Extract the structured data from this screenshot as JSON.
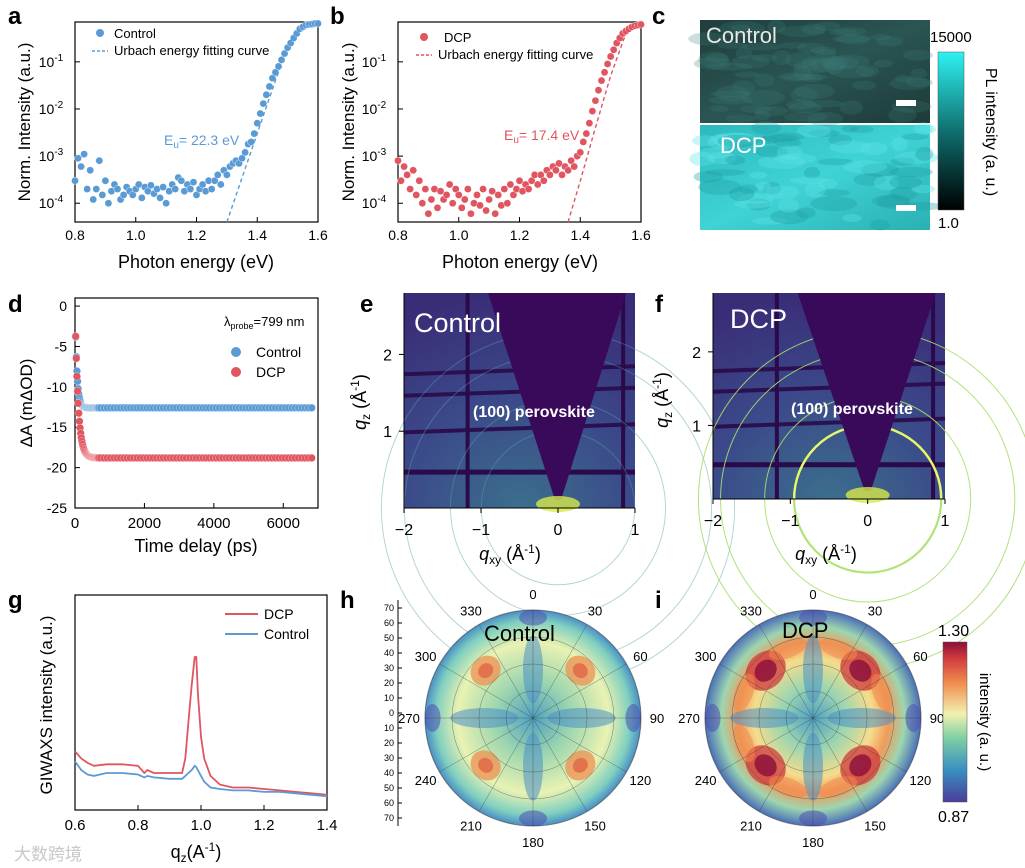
{
  "colors": {
    "control": "#5b9bd5",
    "dcp": "#e05560",
    "axis": "#000000"
  },
  "panel_labels": {
    "a": "a",
    "b": "b",
    "c": "c",
    "d": "d",
    "e": "e",
    "f": "f",
    "g": "g",
    "h": "h",
    "i": "i"
  },
  "watermark": "大数跨境",
  "chart_data": [
    {
      "id": "a",
      "type": "scatter",
      "xlabel": "Photon energy (eV)",
      "ylabel": "Norm. Intensity (a.u.)",
      "yscale": "log",
      "xlim": [
        0.8,
        1.6
      ],
      "ylim": [
        4e-05,
        0.7
      ],
      "xticks": [
        "0.8",
        "1.0",
        "1.2",
        "1.4",
        "1.6"
      ],
      "yticks": [
        {
          "v": 0.1,
          "b": "10",
          "e": "-1"
        },
        {
          "v": 0.01,
          "b": "10",
          "e": "-2"
        },
        {
          "v": 0.001,
          "b": "10",
          "e": "-3"
        },
        {
          "v": 0.0001,
          "b": "10",
          "e": "-4"
        }
      ],
      "legend": [
        "Control",
        "Urbach energy fitting curve"
      ],
      "annotation": {
        "main": "E",
        "sub": "u",
        "rest": "= 22.3 eV"
      },
      "series": [
        {
          "name": "Control",
          "x": [
            0.8,
            0.81,
            0.82,
            0.83,
            0.84,
            0.85,
            0.86,
            0.87,
            0.88,
            0.89,
            0.9,
            0.91,
            0.92,
            0.93,
            0.94,
            0.95,
            0.96,
            0.97,
            0.98,
            0.99,
            1.0,
            1.01,
            1.02,
            1.03,
            1.04,
            1.05,
            1.06,
            1.07,
            1.08,
            1.09,
            1.1,
            1.11,
            1.12,
            1.13,
            1.14,
            1.15,
            1.16,
            1.17,
            1.18,
            1.19,
            1.2,
            1.21,
            1.22,
            1.23,
            1.24,
            1.25,
            1.26,
            1.27,
            1.28,
            1.29,
            1.3,
            1.31,
            1.32,
            1.33,
            1.34,
            1.35,
            1.36,
            1.37,
            1.38,
            1.39,
            1.4,
            1.41,
            1.42,
            1.43,
            1.44,
            1.45,
            1.46,
            1.47,
            1.48,
            1.49,
            1.5,
            1.51,
            1.52,
            1.53,
            1.54,
            1.55,
            1.56,
            1.57,
            1.58,
            1.59,
            1.6
          ],
          "y": [
            0.0003,
            0.0009,
            0.0006,
            0.0011,
            0.0002,
            0.0005,
            0.00012,
            0.0002,
            0.0008,
            0.00015,
            0.0003,
            0.0001,
            0.00018,
            0.00025,
            0.0002,
            0.00012,
            0.00015,
            0.00022,
            0.00018,
            0.00015,
            0.0002,
            0.00025,
            0.00013,
            0.00022,
            0.00018,
            0.00024,
            0.00016,
            0.0002,
            0.00013,
            0.00022,
            0.0001,
            0.00018,
            0.00025,
            0.0002,
            0.00035,
            0.0003,
            0.00018,
            0.00025,
            0.0002,
            0.00028,
            0.00015,
            0.0002,
            0.00025,
            0.00018,
            0.0003,
            0.0002,
            0.0003,
            0.0004,
            0.00025,
            0.0005,
            0.0004,
            0.0006,
            0.0007,
            0.0008,
            0.0007,
            0.0009,
            0.0012,
            0.0018,
            0.002,
            0.003,
            0.005,
            0.008,
            0.013,
            0.02,
            0.03,
            0.045,
            0.06,
            0.08,
            0.11,
            0.15,
            0.2,
            0.25,
            0.32,
            0.4,
            0.5,
            0.55,
            0.6,
            0.62,
            0.63,
            0.65,
            0.65
          ]
        },
        {
          "name": "Urbach energy fitting curve",
          "x": [
            1.3,
            1.35,
            1.4,
            1.45,
            1.5,
            1.55,
            1.58
          ],
          "y": [
            4e-05,
            0.00035,
            0.003,
            0.026,
            0.22,
            0.6,
            0.68
          ],
          "style": "dashed"
        }
      ]
    },
    {
      "id": "b",
      "type": "scatter",
      "xlabel": "Photon energy (eV)",
      "ylabel": "Norm. Intensity (a.u.)",
      "yscale": "log",
      "xlim": [
        0.8,
        1.6
      ],
      "ylim": [
        4e-05,
        0.7
      ],
      "xticks": [
        "0.8",
        "1.0",
        "1.2",
        "1.4",
        "1.6"
      ],
      "yticks": [
        {
          "v": 0.1,
          "b": "10",
          "e": "-1"
        },
        {
          "v": 0.01,
          "b": "10",
          "e": "-2"
        },
        {
          "v": 0.001,
          "b": "10",
          "e": "-3"
        },
        {
          "v": 0.0001,
          "b": "10",
          "e": "-4"
        }
      ],
      "legend": [
        "DCP",
        "Urbach energy fitting curve"
      ],
      "annotation": {
        "main": "E",
        "sub": "u",
        "rest": "= 17.4 eV"
      },
      "series": [
        {
          "name": "DCP",
          "x": [
            0.8,
            0.81,
            0.82,
            0.83,
            0.84,
            0.85,
            0.86,
            0.87,
            0.88,
            0.89,
            0.9,
            0.91,
            0.92,
            0.93,
            0.94,
            0.95,
            0.96,
            0.97,
            0.98,
            0.99,
            1.0,
            1.01,
            1.02,
            1.03,
            1.04,
            1.05,
            1.06,
            1.07,
            1.08,
            1.09,
            1.1,
            1.11,
            1.12,
            1.13,
            1.14,
            1.15,
            1.16,
            1.17,
            1.18,
            1.19,
            1.2,
            1.21,
            1.22,
            1.23,
            1.24,
            1.25,
            1.26,
            1.27,
            1.28,
            1.29,
            1.3,
            1.31,
            1.32,
            1.33,
            1.34,
            1.35,
            1.36,
            1.37,
            1.38,
            1.39,
            1.4,
            1.41,
            1.42,
            1.43,
            1.44,
            1.45,
            1.46,
            1.47,
            1.48,
            1.49,
            1.5,
            1.51,
            1.52,
            1.53,
            1.54,
            1.55,
            1.56,
            1.57,
            1.58,
            1.59,
            1.6
          ],
          "y": [
            0.0008,
            0.0003,
            0.0006,
            0.0004,
            0.0002,
            0.0005,
            0.00015,
            0.0003,
            0.0001,
            0.0002,
            6e-05,
            0.00012,
            0.0002,
            8e-05,
            0.00018,
            0.00012,
            0.00015,
            0.00025,
            0.0001,
            0.0002,
            0.00015,
            8e-05,
            0.00012,
            0.0002,
            6e-05,
            0.0001,
            0.00015,
            9e-05,
            0.0002,
            7e-05,
            0.00012,
            0.00018,
            6e-05,
            0.00015,
            9e-05,
            0.0002,
            0.0001,
            0.00025,
            0.00015,
            0.0002,
            0.0003,
            0.00018,
            0.00025,
            0.0002,
            0.0003,
            0.0004,
            0.00025,
            0.0004,
            0.0003,
            0.0005,
            0.0004,
            0.0006,
            0.0005,
            0.0007,
            0.0004,
            0.0006,
            0.0005,
            0.0008,
            0.0006,
            0.001,
            0.0012,
            0.002,
            0.003,
            0.005,
            0.009,
            0.015,
            0.025,
            0.04,
            0.06,
            0.09,
            0.13,
            0.18,
            0.25,
            0.32,
            0.4,
            0.45,
            0.5,
            0.55,
            0.58,
            0.6,
            0.62
          ]
        },
        {
          "name": "Urbach energy fitting curve",
          "x": [
            1.36,
            1.4,
            1.45,
            1.5,
            1.55,
            1.58
          ],
          "y": [
            4e-05,
            0.0003,
            0.004,
            0.05,
            0.4,
            0.68
          ],
          "style": "dashed"
        }
      ]
    },
    {
      "id": "c",
      "type": "image",
      "labels": [
        "Control",
        "DCP"
      ],
      "colorbar": {
        "title": "PL intensity (a. u.)",
        "max": "15000",
        "min": "1.0"
      }
    },
    {
      "id": "d",
      "type": "scatter",
      "xlabel": "Time delay (ps)",
      "ylabel": "ΔA (mΔOD)",
      "xlim": [
        0,
        7000
      ],
      "ylim": [
        -25,
        1
      ],
      "xticks": [
        "0",
        "2000",
        "4000",
        "6000"
      ],
      "yticks": [
        "0",
        "-5",
        "-10",
        "-15",
        "-20",
        "-25"
      ],
      "probe": {
        "lambda": "λ",
        "sub": "probe",
        "rest": "=799 nm"
      },
      "legend": [
        "Control",
        "DCP"
      ],
      "series": [
        {
          "name": "Control",
          "plateau": -12.6
        },
        {
          "name": "DCP",
          "plateau": -18.8
        }
      ]
    },
    {
      "id": "e",
      "type": "heatmap",
      "title": "Control",
      "xlabel": "q",
      "xlabel_sub": "xy",
      "xlabel_unit": " (Å",
      "xlabel_exp": "-1",
      "xlabel_close": ")",
      "ylabel": "q",
      "ylabel_sub": "z",
      "ylabel_unit": " (Å",
      "ylabel_exp": "-1",
      "ylabel_close": ")",
      "xlim": [
        -2,
        1
      ],
      "ylim": [
        0,
        2.8
      ],
      "xticks": [
        "−2",
        "−1",
        "0",
        "1"
      ],
      "yticks": [
        "1",
        "2"
      ],
      "annotation": "(100) perovskite"
    },
    {
      "id": "f",
      "type": "heatmap",
      "title": "DCP",
      "xlabel": "q",
      "xlabel_sub": "xy",
      "xlabel_unit": " (Å",
      "xlabel_exp": "-1",
      "xlabel_close": ")",
      "ylabel": "q",
      "ylabel_sub": "z",
      "ylabel_unit": " (Å",
      "ylabel_exp": "-1",
      "ylabel_close": ")",
      "xlim": [
        -2,
        1
      ],
      "ylim": [
        0,
        2.8
      ],
      "xticks": [
        "−2",
        "−1",
        "0",
        "1"
      ],
      "yticks": [
        "1",
        "2"
      ],
      "annotation": "(100) perovskite"
    },
    {
      "id": "g",
      "type": "line",
      "xlabel": "q",
      "xlabel_sub": "z",
      "xlabel_rest": "(A",
      "xlabel_exp": "-1",
      "xlabel_close": ")",
      "ylabel": "GIWAXS intensity (a.u.)",
      "xlim": [
        0.6,
        1.4
      ],
      "xticks": [
        "0.6",
        "0.8",
        "1.0",
        "1.2",
        "1.4"
      ],
      "legend": [
        "DCP",
        "Control"
      ],
      "series": [
        {
          "name": "DCP",
          "x": [
            0.6,
            0.62,
            0.64,
            0.66,
            0.7,
            0.75,
            0.8,
            0.82,
            0.83,
            0.85,
            0.9,
            0.94,
            0.95,
            0.96,
            0.97,
            0.98,
            0.985,
            0.99,
            1.0,
            1.01,
            1.03,
            1.06,
            1.1,
            1.15,
            1.2,
            1.25,
            1.3,
            1.35,
            1.4
          ],
          "y": [
            0.35,
            0.3,
            0.27,
            0.25,
            0.26,
            0.26,
            0.25,
            0.2,
            0.22,
            0.2,
            0.2,
            0.2,
            0.3,
            0.55,
            0.8,
            1.0,
            1.0,
            0.75,
            0.45,
            0.3,
            0.18,
            0.12,
            0.1,
            0.1,
            0.09,
            0.08,
            0.07,
            0.06,
            0.05
          ]
        },
        {
          "name": "Control",
          "x": [
            0.6,
            0.62,
            0.64,
            0.66,
            0.7,
            0.75,
            0.8,
            0.82,
            0.83,
            0.85,
            0.9,
            0.94,
            0.95,
            0.96,
            0.97,
            0.98,
            0.985,
            0.99,
            1.0,
            1.01,
            1.03,
            1.06,
            1.1,
            1.15,
            1.2,
            1.25,
            1.3,
            1.35,
            1.4
          ],
          "y": [
            0.28,
            0.22,
            0.19,
            0.18,
            0.2,
            0.2,
            0.19,
            0.17,
            0.18,
            0.17,
            0.16,
            0.16,
            0.18,
            0.2,
            0.22,
            0.25,
            0.24,
            0.22,
            0.18,
            0.14,
            0.1,
            0.09,
            0.08,
            0.08,
            0.07,
            0.07,
            0.06,
            0.05,
            0.04
          ]
        }
      ]
    },
    {
      "id": "h",
      "type": "polar-heatmap",
      "title": "Control",
      "angles": [
        "0",
        "30",
        "60",
        "90",
        "120",
        "150",
        "180",
        "210",
        "240",
        "270",
        "300",
        "330"
      ],
      "radial_ticks": [
        "70",
        "60",
        "50",
        "40",
        "30",
        "20",
        "10",
        "0",
        "10",
        "20",
        "30",
        "40",
        "50",
        "60",
        "70"
      ]
    },
    {
      "id": "i",
      "type": "polar-heatmap",
      "title": "DCP",
      "angles": [
        "0",
        "30",
        "60",
        "90",
        "120",
        "150",
        "180",
        "210",
        "240",
        "270",
        "300",
        "330"
      ],
      "colorbar": {
        "title": "intensity (a. u.)",
        "max": "1.30",
        "min": "0.87"
      }
    }
  ]
}
